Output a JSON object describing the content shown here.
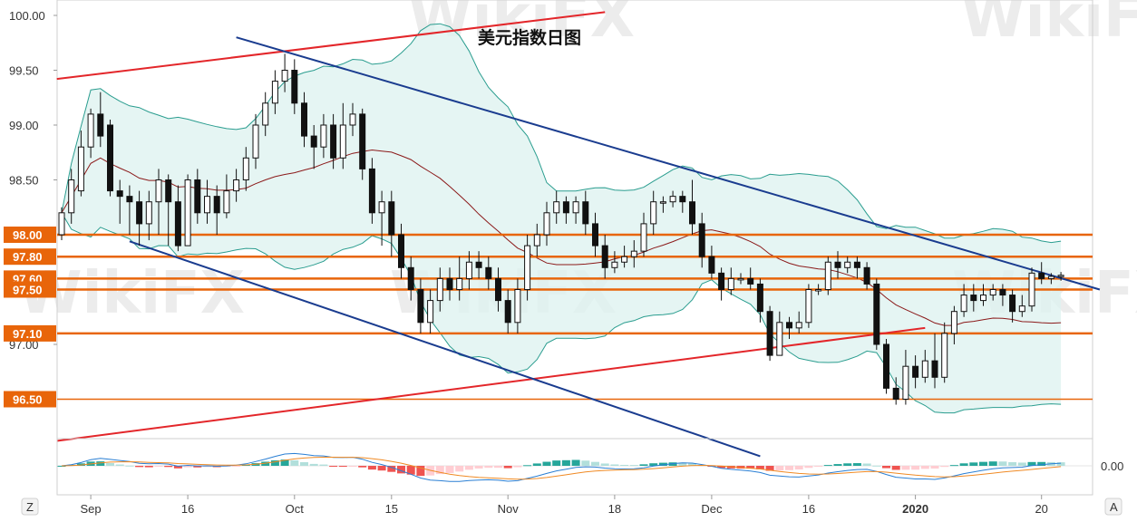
{
  "chart_data": {
    "type": "candlestick",
    "title": "美元指数日图",
    "watermark": "WikiFX",
    "y_ticks": [
      "100.00",
      "99.50",
      "99.00",
      "98.50",
      "97.00"
    ],
    "ylim": [
      96.2,
      100.1
    ],
    "level_lines": [
      {
        "value": 98.0,
        "label": "98.00"
      },
      {
        "value": 97.8,
        "label": "97.80"
      },
      {
        "value": 97.6,
        "label": "97.60"
      },
      {
        "value": 97.5,
        "label": "97.50"
      },
      {
        "value": 97.1,
        "label": "97.10"
      },
      {
        "value": 96.5,
        "label": "96.50"
      }
    ],
    "x_ticks": [
      {
        "label": "Sep",
        "bold": false,
        "i": 3
      },
      {
        "label": "16",
        "bold": false,
        "i": 13
      },
      {
        "label": "Oct",
        "bold": false,
        "i": 24
      },
      {
        "label": "15",
        "bold": false,
        "i": 34
      },
      {
        "label": "Nov",
        "bold": false,
        "i": 46
      },
      {
        "label": "18",
        "bold": false,
        "i": 57
      },
      {
        "label": "Dec",
        "bold": false,
        "i": 67
      },
      {
        "label": "16",
        "bold": false,
        "i": 77
      },
      {
        "label": "2020",
        "bold": true,
        "i": 88
      },
      {
        "label": "20",
        "bold": false,
        "i": 101
      }
    ],
    "osc_tick": "0.00",
    "left_badge": "Z",
    "right_badge": "A",
    "colors": {
      "level_orange": "#e8650a",
      "channel_blue": "#1a3c8f",
      "channel_red": "#e3262a",
      "bb_line": "#2a9d8f",
      "bb_fill": "#dff2f0",
      "ma_line": "#8b1a1a",
      "macd_fast": "#2a7fd4",
      "macd_slow": "#f08a24",
      "hist_pos_dark": "#26a69a",
      "hist_pos_light": "#b2dfdb",
      "hist_neg_dark": "#ef5350",
      "hist_neg_light": "#ffcdd2"
    },
    "candles": [
      [
        98.0,
        98.2,
        97.95,
        98.25
      ],
      [
        98.2,
        98.5,
        98.1,
        98.6
      ],
      [
        98.4,
        98.8,
        98.35,
        98.95
      ],
      [
        98.8,
        99.1,
        98.7,
        99.15
      ],
      [
        99.1,
        98.9,
        98.8,
        99.3
      ],
      [
        99.0,
        98.4,
        98.35,
        99.05
      ],
      [
        98.4,
        98.35,
        98.1,
        98.5
      ],
      [
        98.35,
        98.3,
        98.0,
        98.45
      ],
      [
        98.3,
        98.1,
        97.9,
        98.4
      ],
      [
        98.1,
        98.3,
        97.95,
        98.4
      ],
      [
        98.3,
        98.5,
        98.0,
        98.6
      ],
      [
        98.5,
        98.3,
        97.9,
        98.55
      ],
      [
        98.3,
        97.9,
        97.85,
        98.45
      ],
      [
        97.9,
        98.5,
        97.9,
        98.55
      ],
      [
        98.5,
        98.2,
        98.1,
        98.6
      ],
      [
        98.2,
        98.35,
        98.1,
        98.5
      ],
      [
        98.35,
        98.2,
        98.0,
        98.45
      ],
      [
        98.2,
        98.4,
        98.15,
        98.55
      ],
      [
        98.4,
        98.5,
        98.3,
        98.6
      ],
      [
        98.5,
        98.7,
        98.4,
        98.8
      ],
      [
        98.7,
        99.0,
        98.6,
        99.1
      ],
      [
        99.0,
        99.2,
        98.9,
        99.3
      ],
      [
        99.2,
        99.4,
        99.1,
        99.5
      ],
      [
        99.4,
        99.5,
        99.3,
        99.65
      ],
      [
        99.5,
        99.2,
        99.1,
        99.6
      ],
      [
        99.2,
        98.9,
        98.8,
        99.3
      ],
      [
        98.9,
        98.8,
        98.6,
        99.0
      ],
      [
        98.8,
        99.0,
        98.7,
        99.1
      ],
      [
        99.0,
        98.7,
        98.6,
        99.1
      ],
      [
        98.7,
        99.0,
        98.6,
        99.2
      ],
      [
        99.0,
        99.1,
        98.9,
        99.2
      ],
      [
        99.1,
        98.6,
        98.5,
        99.15
      ],
      [
        98.6,
        98.2,
        98.1,
        98.7
      ],
      [
        98.2,
        98.3,
        97.9,
        98.4
      ],
      [
        98.3,
        98.0,
        97.8,
        98.4
      ],
      [
        98.0,
        97.7,
        97.6,
        98.1
      ],
      [
        97.7,
        97.5,
        97.4,
        97.8
      ],
      [
        97.5,
        97.2,
        97.1,
        97.6
      ],
      [
        97.2,
        97.4,
        97.1,
        97.5
      ],
      [
        97.4,
        97.6,
        97.3,
        97.7
      ],
      [
        97.6,
        97.5,
        97.4,
        97.7
      ],
      [
        97.5,
        97.6,
        97.4,
        97.8
      ],
      [
        97.6,
        97.75,
        97.5,
        97.85
      ],
      [
        97.75,
        97.7,
        97.6,
        97.85
      ],
      [
        97.7,
        97.6,
        97.5,
        97.8
      ],
      [
        97.6,
        97.4,
        97.3,
        97.7
      ],
      [
        97.4,
        97.2,
        97.1,
        97.5
      ],
      [
        97.2,
        97.5,
        97.1,
        97.6
      ],
      [
        97.5,
        97.9,
        97.4,
        98.0
      ],
      [
        97.9,
        98.0,
        97.8,
        98.1
      ],
      [
        98.0,
        98.2,
        97.9,
        98.3
      ],
      [
        98.2,
        98.3,
        98.1,
        98.4
      ],
      [
        98.3,
        98.2,
        98.1,
        98.35
      ],
      [
        98.2,
        98.3,
        98.1,
        98.35
      ],
      [
        98.3,
        98.1,
        98.0,
        98.4
      ],
      [
        98.1,
        97.9,
        97.8,
        98.2
      ],
      [
        97.9,
        97.7,
        97.6,
        98.0
      ],
      [
        97.7,
        97.75,
        97.65,
        97.85
      ],
      [
        97.75,
        97.8,
        97.7,
        97.9
      ],
      [
        97.8,
        97.85,
        97.7,
        97.95
      ],
      [
        97.85,
        98.1,
        97.8,
        98.2
      ],
      [
        98.1,
        98.3,
        98.0,
        98.4
      ],
      [
        98.3,
        98.3,
        98.2,
        98.35
      ],
      [
        98.3,
        98.35,
        98.25,
        98.4
      ],
      [
        98.35,
        98.3,
        98.2,
        98.4
      ],
      [
        98.3,
        98.1,
        98.0,
        98.5
      ],
      [
        98.1,
        97.8,
        97.7,
        98.2
      ],
      [
        97.8,
        97.65,
        97.6,
        97.9
      ],
      [
        97.65,
        97.5,
        97.4,
        97.7
      ],
      [
        97.5,
        97.6,
        97.45,
        97.7
      ],
      [
        97.6,
        97.6,
        97.55,
        97.65
      ],
      [
        97.6,
        97.55,
        97.5,
        97.7
      ],
      [
        97.55,
        97.3,
        97.2,
        97.6
      ],
      [
        97.3,
        96.9,
        96.85,
        97.35
      ],
      [
        96.9,
        97.2,
        96.9,
        97.3
      ],
      [
        97.2,
        97.15,
        97.05,
        97.25
      ],
      [
        97.15,
        97.2,
        97.1,
        97.3
      ],
      [
        97.2,
        97.5,
        97.15,
        97.55
      ],
      [
        97.5,
        97.5,
        97.45,
        97.55
      ],
      [
        97.5,
        97.75,
        97.45,
        97.8
      ],
      [
        97.75,
        97.7,
        97.6,
        97.85
      ],
      [
        97.7,
        97.75,
        97.65,
        97.8
      ],
      [
        97.75,
        97.7,
        97.6,
        97.8
      ],
      [
        97.7,
        97.55,
        97.5,
        97.75
      ],
      [
        97.55,
        97.0,
        96.95,
        97.6
      ],
      [
        97.0,
        96.6,
        96.55,
        97.05
      ],
      [
        96.6,
        96.5,
        96.45,
        96.7
      ],
      [
        96.5,
        96.8,
        96.45,
        96.95
      ],
      [
        96.8,
        96.7,
        96.6,
        96.9
      ],
      [
        96.7,
        96.85,
        96.65,
        96.95
      ],
      [
        96.85,
        96.7,
        96.6,
        97.1
      ],
      [
        96.7,
        97.1,
        96.65,
        97.2
      ],
      [
        97.1,
        97.3,
        97.0,
        97.35
      ],
      [
        97.3,
        97.45,
        97.25,
        97.55
      ],
      [
        97.45,
        97.4,
        97.3,
        97.55
      ],
      [
        97.4,
        97.45,
        97.35,
        97.55
      ],
      [
        97.45,
        97.5,
        97.4,
        97.55
      ],
      [
        97.5,
        97.45,
        97.35,
        97.55
      ],
      [
        97.45,
        97.3,
        97.2,
        97.5
      ],
      [
        97.3,
        97.35,
        97.25,
        97.45
      ],
      [
        97.35,
        97.65,
        97.3,
        97.7
      ],
      [
        97.65,
        97.6,
        97.55,
        97.75
      ],
      [
        97.6,
        97.62,
        97.55,
        97.65
      ],
      [
        97.62,
        97.63,
        97.58,
        97.66
      ]
    ]
  }
}
